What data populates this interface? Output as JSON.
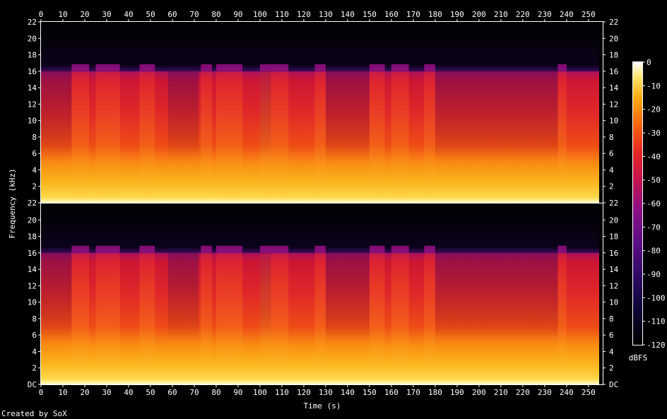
{
  "chart_data": {
    "type": "heatmap",
    "title": "",
    "xlabel": "Time (s)",
    "ylabel": "Frequency (kHz)",
    "x_ticks": [
      0,
      10,
      20,
      30,
      40,
      50,
      60,
      70,
      80,
      90,
      100,
      110,
      120,
      130,
      140,
      150,
      160,
      170,
      180,
      190,
      200,
      210,
      220,
      230,
      240,
      250
    ],
    "xlim": [
      0,
      256.5
    ],
    "y_ticks": [
      "DC",
      "2",
      "4",
      "6",
      "8",
      "10",
      "12",
      "14",
      "16",
      "18",
      "20",
      "22"
    ],
    "ylim_khz": [
      0,
      22
    ],
    "channels": [
      {
        "channel": 1,
        "freq_cutoff_khz": 16
      },
      {
        "channel": 2,
        "freq_cutoff_khz": 16
      }
    ],
    "loud_segments_s": [
      [
        14,
        22
      ],
      [
        25,
        36
      ],
      [
        45,
        52
      ],
      [
        73,
        78
      ],
      [
        80,
        92
      ],
      [
        100,
        113
      ],
      [
        125,
        130
      ],
      [
        150,
        157
      ],
      [
        160,
        168
      ],
      [
        175,
        180
      ],
      [
        236,
        240
      ]
    ],
    "quiet_segments_s": [
      [
        0,
        14
      ],
      [
        58,
        72
      ],
      [
        100,
        105
      ],
      [
        130,
        150
      ],
      [
        180,
        236
      ]
    ],
    "colorbar": {
      "label": "dBFS",
      "ticks": [
        0,
        -10,
        -20,
        -30,
        -40,
        -50,
        -60,
        -70,
        -80,
        -90,
        -100,
        -110,
        -120
      ],
      "range": [
        -120,
        0
      ]
    },
    "grid": false,
    "legend": "colorbar-right"
  },
  "footer": {
    "credit": "Created by SoX"
  }
}
